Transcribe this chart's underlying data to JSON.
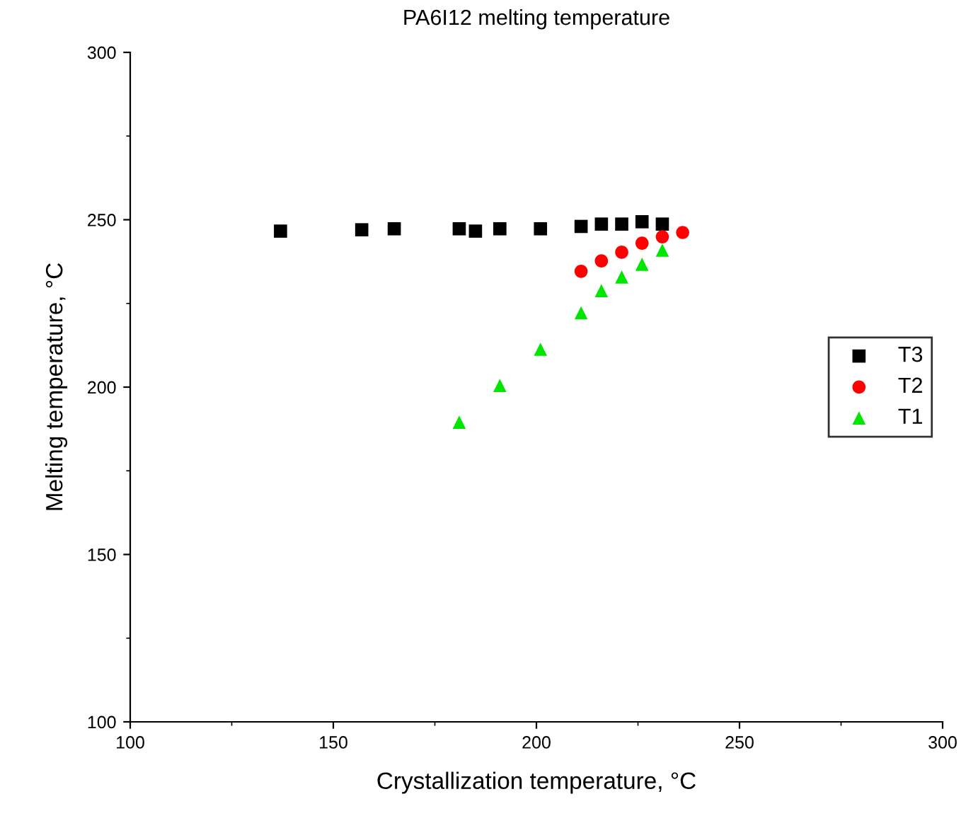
{
  "chart_data": {
    "type": "scatter",
    "title": "PA6I12 melting temperature",
    "xlabel": "Crystallization temperature, °C",
    "ylabel": "Melting temperature, °C",
    "xlim": [
      100,
      300
    ],
    "xticks": [
      100,
      150,
      200,
      250,
      300
    ],
    "ylim": [
      100,
      300
    ],
    "yticks": [
      100,
      150,
      200,
      250,
      300
    ],
    "grid": false,
    "legend": "right",
    "series": [
      {
        "name": "T3",
        "color": "#000000",
        "marker": "square",
        "x": [
          137,
          157,
          165,
          181,
          185,
          191,
          201,
          211,
          216,
          221,
          226,
          231
        ],
        "values": [
          246.6,
          247.0,
          247.3,
          247.3,
          246.6,
          247.3,
          247.3,
          248.0,
          248.7,
          248.7,
          249.4,
          248.7
        ]
      },
      {
        "name": "T2",
        "color": "#ff0000",
        "marker": "circle",
        "x": [
          211,
          216,
          221,
          226,
          231,
          236
        ],
        "values": [
          234.6,
          237.7,
          240.3,
          243.0,
          244.9,
          246.2
        ]
      },
      {
        "name": "T1",
        "color": "#00e600",
        "marker": "triangle",
        "x": [
          181,
          191,
          201,
          211,
          216,
          221,
          226,
          231
        ],
        "values": [
          189.5,
          200.5,
          211.3,
          222.2,
          228.8,
          232.9,
          236.7,
          240.9
        ]
      }
    ]
  }
}
